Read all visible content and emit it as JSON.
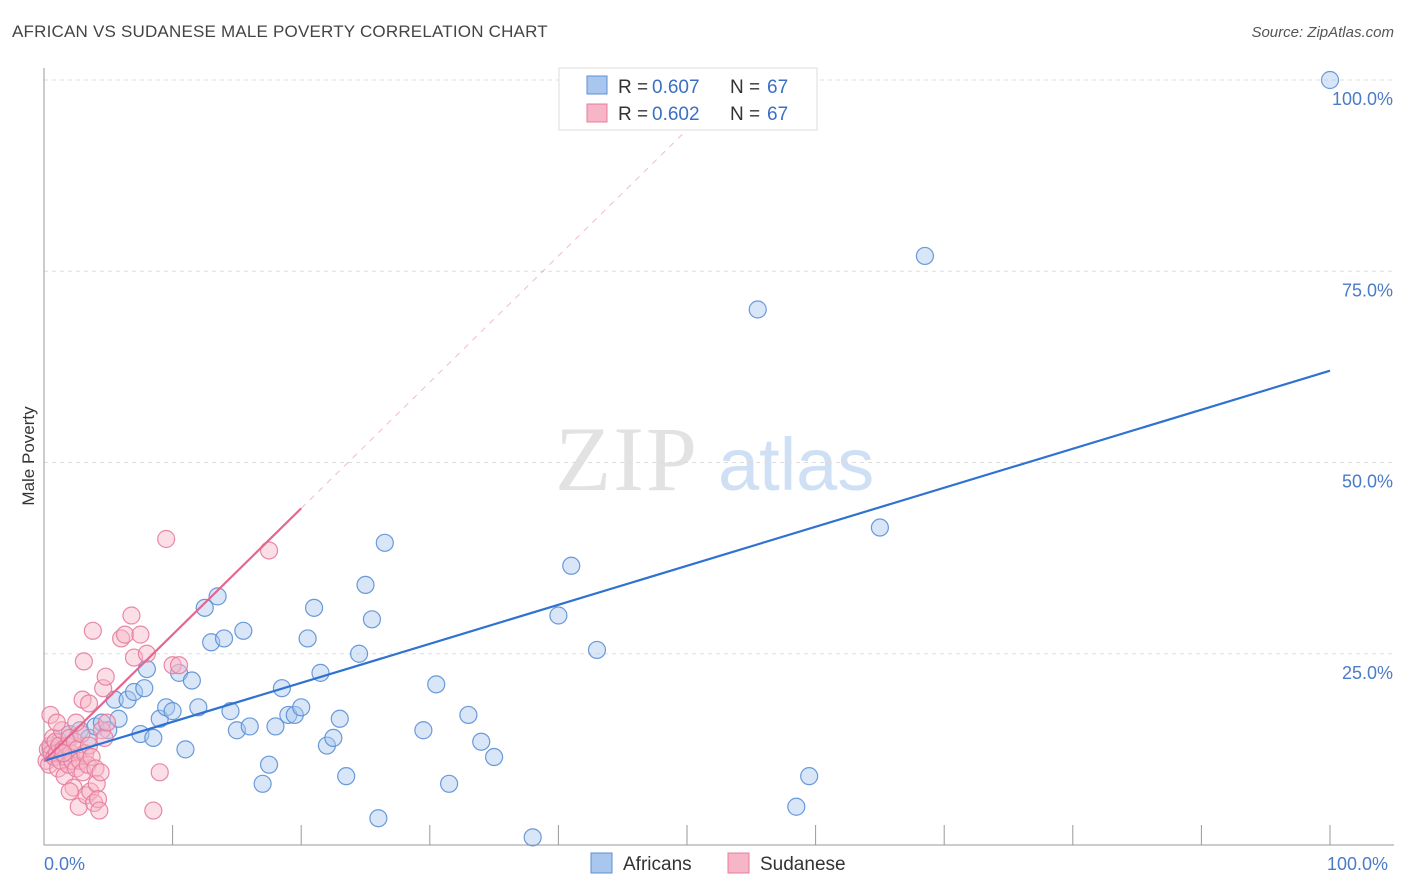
{
  "title": "AFRICAN VS SUDANESE MALE POVERTY CORRELATION CHART",
  "source": "Source: ZipAtlas.com",
  "watermark": {
    "zip": "ZIP",
    "atlas": "atlas"
  },
  "colors": {
    "africans_fill": "#a9c7ee",
    "africans_stroke": "#5b8fd6",
    "africans_line": "#2f72d1",
    "sudanese_fill": "#f7b5c8",
    "sudanese_stroke": "#e77c9d",
    "sudanese_line": "#e46690",
    "tick": "#4a7bc8",
    "grid": "#dddddd"
  },
  "legend": {
    "rows": [
      {
        "r_label": "R = ",
        "r_value": "0.607",
        "n_label": "N = ",
        "n_value": "67"
      },
      {
        "r_label": "R = ",
        "r_value": "0.602",
        "n_label": "N = ",
        "n_value": "67"
      }
    ]
  },
  "chart_data": {
    "type": "scatter",
    "title": "AFRICAN VS SUDANESE MALE POVERTY CORRELATION CHART",
    "xlabel": "",
    "ylabel": "Male Poverty",
    "xlim": [
      0,
      100
    ],
    "ylim": [
      0,
      100
    ],
    "x_tick_labels": [
      "0.0%",
      "100.0%"
    ],
    "y_tick_labels": [
      "25.0%",
      "50.0%",
      "75.0%",
      "100.0%"
    ],
    "y_tick_values": [
      25,
      50,
      75,
      100
    ],
    "grid": "horizontal dashed",
    "legend_position": "bottom-center",
    "series": [
      {
        "name": "Africans",
        "R": 0.607,
        "N": 67,
        "trend": {
          "x": [
            0,
            100
          ],
          "y": [
            11.0,
            62.0
          ]
        },
        "points": [
          [
            0.5,
            12.5
          ],
          [
            1.2,
            13.5
          ],
          [
            1.5,
            11.5
          ],
          [
            2.0,
            14.5
          ],
          [
            2.8,
            15.0
          ],
          [
            3.5,
            14.0
          ],
          [
            4.0,
            15.5
          ],
          [
            4.5,
            16.0
          ],
          [
            5.0,
            15.0
          ],
          [
            5.5,
            19.0
          ],
          [
            5.8,
            16.5
          ],
          [
            6.5,
            19.0
          ],
          [
            7.0,
            20.0
          ],
          [
            7.5,
            14.5
          ],
          [
            7.8,
            20.5
          ],
          [
            8.0,
            23.0
          ],
          [
            8.5,
            14.0
          ],
          [
            9.0,
            16.5
          ],
          [
            9.5,
            18.0
          ],
          [
            10.0,
            17.5
          ],
          [
            10.5,
            22.5
          ],
          [
            11.0,
            12.5
          ],
          [
            11.5,
            21.5
          ],
          [
            12.0,
            18.0
          ],
          [
            12.5,
            31.0
          ],
          [
            13.0,
            26.5
          ],
          [
            13.5,
            32.5
          ],
          [
            14.0,
            27.0
          ],
          [
            14.5,
            17.5
          ],
          [
            15.0,
            15.0
          ],
          [
            15.5,
            28.0
          ],
          [
            16.0,
            15.5
          ],
          [
            17.0,
            8.0
          ],
          [
            17.5,
            10.5
          ],
          [
            18.0,
            15.5
          ],
          [
            18.5,
            20.5
          ],
          [
            19.0,
            17.0
          ],
          [
            19.5,
            17.0
          ],
          [
            20.0,
            18.0
          ],
          [
            20.5,
            27.0
          ],
          [
            21.0,
            31.0
          ],
          [
            21.5,
            22.5
          ],
          [
            22.0,
            13.0
          ],
          [
            22.5,
            14.0
          ],
          [
            23.0,
            16.5
          ],
          [
            23.5,
            9.0
          ],
          [
            24.5,
            25.0
          ],
          [
            25.0,
            34.0
          ],
          [
            25.5,
            29.5
          ],
          [
            26.0,
            3.5
          ],
          [
            26.5,
            39.5
          ],
          [
            29.5,
            15.0
          ],
          [
            30.5,
            21.0
          ],
          [
            31.5,
            8.0
          ],
          [
            33.0,
            17.0
          ],
          [
            34.0,
            13.5
          ],
          [
            35.0,
            11.5
          ],
          [
            38.0,
            1.0
          ],
          [
            40.0,
            30.0
          ],
          [
            41.0,
            36.5
          ],
          [
            43.0,
            25.5
          ],
          [
            55.5,
            70.0
          ],
          [
            58.5,
            5.0
          ],
          [
            59.5,
            9.0
          ],
          [
            65.0,
            41.5
          ],
          [
            68.5,
            77.0
          ],
          [
            100.0,
            100.0
          ]
        ]
      },
      {
        "name": "Sudanese",
        "R": 0.602,
        "N": 67,
        "trend": {
          "x": [
            0,
            20
          ],
          "y": [
            11.0,
            44.0
          ]
        },
        "trend_extension": {
          "x": [
            20,
            50
          ],
          "y": [
            44.0,
            93.5
          ]
        },
        "points": [
          [
            0.2,
            11.0
          ],
          [
            0.3,
            12.5
          ],
          [
            0.4,
            10.5
          ],
          [
            0.5,
            13.0
          ],
          [
            0.6,
            12.0
          ],
          [
            0.7,
            14.0
          ],
          [
            0.8,
            11.5
          ],
          [
            0.9,
            13.5
          ],
          [
            1.0,
            12.0
          ],
          [
            1.1,
            10.0
          ],
          [
            1.2,
            13.0
          ],
          [
            1.3,
            11.0
          ],
          [
            1.4,
            15.0
          ],
          [
            1.5,
            12.5
          ],
          [
            1.6,
            9.0
          ],
          [
            1.7,
            11.5
          ],
          [
            1.8,
            13.0
          ],
          [
            1.9,
            10.5
          ],
          [
            2.0,
            14.0
          ],
          [
            2.1,
            12.0
          ],
          [
            2.2,
            11.0
          ],
          [
            2.3,
            7.5
          ],
          [
            2.4,
            13.5
          ],
          [
            2.5,
            10.0
          ],
          [
            2.6,
            12.5
          ],
          [
            2.7,
            5.0
          ],
          [
            2.8,
            11.0
          ],
          [
            2.9,
            14.5
          ],
          [
            3.0,
            9.5
          ],
          [
            3.1,
            24.0
          ],
          [
            3.2,
            12.0
          ],
          [
            3.3,
            6.5
          ],
          [
            3.4,
            10.5
          ],
          [
            3.5,
            13.0
          ],
          [
            3.6,
            7.0
          ],
          [
            3.7,
            11.5
          ],
          [
            3.8,
            28.0
          ],
          [
            3.9,
            5.5
          ],
          [
            4.0,
            10.0
          ],
          [
            4.1,
            8.0
          ],
          [
            4.2,
            6.0
          ],
          [
            4.3,
            4.5
          ],
          [
            4.4,
            9.5
          ],
          [
            4.5,
            15.0
          ],
          [
            4.6,
            20.5
          ],
          [
            4.7,
            14.0
          ],
          [
            4.8,
            22.0
          ],
          [
            4.9,
            16.0
          ],
          [
            0.5,
            17.0
          ],
          [
            1.0,
            16.0
          ],
          [
            2.0,
            7.0
          ],
          [
            3.0,
            19.0
          ],
          [
            3.5,
            18.5
          ],
          [
            6.0,
            27.0
          ],
          [
            6.3,
            27.5
          ],
          [
            6.8,
            30.0
          ],
          [
            7.0,
            24.5
          ],
          [
            7.5,
            27.5
          ],
          [
            8.0,
            25.0
          ],
          [
            8.5,
            4.5
          ],
          [
            9.0,
            9.5
          ],
          [
            9.5,
            40.0
          ],
          [
            10.0,
            23.5
          ],
          [
            10.5,
            23.5
          ],
          [
            17.5,
            38.5
          ],
          [
            2.5,
            16.0
          ],
          [
            1.5,
            12.0
          ]
        ]
      }
    ]
  },
  "bottom_legend": [
    {
      "label": "Africans"
    },
    {
      "label": "Sudanese"
    }
  ]
}
